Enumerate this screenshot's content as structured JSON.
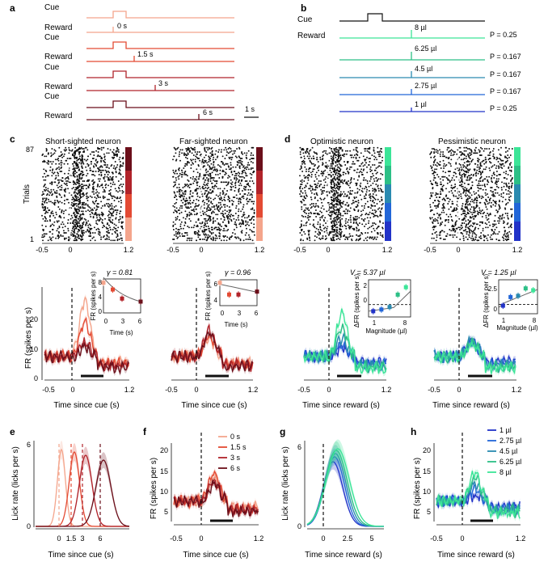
{
  "panel_letters": [
    "a",
    "b",
    "c",
    "d",
    "e",
    "f",
    "g",
    "h"
  ],
  "colors": {
    "red": [
      "#f4a58c",
      "#e34a33",
      "#b1232a",
      "#6b0f1a"
    ],
    "blue": [
      "#2233c8",
      "#2266d8",
      "#2a8ab0",
      "#2cbf86",
      "#3ce598"
    ]
  },
  "panel_a": {
    "cue_label": "Cue",
    "reward_label": "Reward",
    "delays": [
      "0 s",
      "1.5 s",
      "3 s",
      "6 s"
    ],
    "scale_label": "1 s"
  },
  "panel_b": {
    "cue_label": "Cue",
    "reward_label": "Reward",
    "magnitudes": [
      "8 µl",
      "6.25 µl",
      "4.5 µl",
      "2.75 µl",
      "1 µl"
    ],
    "probs": [
      "P = 0.25",
      "P = 0.167",
      "P = 0.167",
      "P = 0.167",
      "P = 0.25"
    ]
  },
  "panel_c": {
    "raster_titles": [
      "Short-sighted neuron",
      "Far-sighted neuron"
    ],
    "trials_label": "Trials",
    "trial_top": "87",
    "trial_bottom": "1",
    "xticks": [
      "-0.5",
      "0",
      "1.2"
    ],
    "ylabel": "FR (spikes per s)",
    "yticks": [
      "0",
      "10",
      "20"
    ],
    "xlabel": "Time since cue (s)",
    "inset1": {
      "title": "γ = 0.81",
      "ylabel": "FR (spikes per s)",
      "xlabel": "Time (s)",
      "yticks": [
        "0",
        "4",
        "8"
      ],
      "xticks": [
        "0",
        "3",
        "6"
      ]
    },
    "inset2": {
      "title": "γ = 0.96",
      "ylabel": "FR (spikes per s)",
      "xlabel": "Time (s)",
      "yticks": [
        "4",
        "6"
      ],
      "xticks": [
        "0",
        "3",
        "6"
      ]
    }
  },
  "panel_d": {
    "raster_titles": [
      "Optimistic neuron",
      "Pessimistic neuron"
    ],
    "xticks": [
      "-0.5",
      "0",
      "1.2"
    ],
    "xlabel": "Time since reward (s)",
    "inset1": {
      "title": "V = 5.37 µl",
      "ylabel": "ΔFR (spikes per s)",
      "xlabel": "Magnitude (µl)",
      "yticks": [
        "0",
        "2"
      ],
      "xticks": [
        "1",
        "8"
      ]
    },
    "inset2": {
      "title": "V = 1.25 µl",
      "ylabel": "ΔFR (spikes per s)",
      "xlabel": "Magnitude (µl)",
      "yticks": [
        "0",
        "2.5"
      ],
      "xticks": [
        "1",
        "8"
      ]
    }
  },
  "panel_e": {
    "ylabel": "Lick rate (licks per s)",
    "yticks": [
      "0",
      "6"
    ],
    "xticks": [
      "0",
      "1.5",
      "3",
      "6"
    ],
    "xlabel": "Time since cue (s)"
  },
  "panel_f": {
    "ylabel": "FR (spikes per s)",
    "yticks": [
      "5",
      "10",
      "15",
      "20"
    ],
    "xticks": [
      "-0.5",
      "0",
      "1.2"
    ],
    "xlabel": "Time since cue (s)",
    "legend": [
      "0 s",
      "1.5 s",
      "3 s",
      "6 s"
    ]
  },
  "panel_g": {
    "ylabel": "Lick rate (licks per s)",
    "yticks": [
      "0",
      "6"
    ],
    "xticks": [
      "0",
      "2.5",
      "5"
    ],
    "xlabel": "Time since reward (s)"
  },
  "panel_h": {
    "ylabel": "FR (spikes per s)",
    "yticks": [
      "5",
      "10",
      "15",
      "20"
    ],
    "xticks": [
      "-0.5",
      "0",
      "1.2"
    ],
    "xlabel": "Time since reward (s)",
    "legend": [
      "1 µl",
      "2.75 µl",
      "4.5 µl",
      "6.25 µl",
      "8 µl"
    ]
  },
  "chart_data": [
    {
      "type": "scatter",
      "panel": "c-inset-short",
      "title": "γ = 0.81",
      "xlabel": "Time (s)",
      "ylabel": "FR (spikes per s)",
      "x": [
        0,
        1.5,
        3,
        6
      ],
      "y": [
        8,
        6.2,
        3.8,
        3.0
      ],
      "xlim": [
        0,
        6
      ],
      "ylim": [
        0,
        9
      ]
    },
    {
      "type": "scatter",
      "panel": "c-inset-far",
      "title": "γ = 0.96",
      "xlabel": "Time (s)",
      "ylabel": "FR (spikes per s)",
      "x": [
        0,
        1.5,
        3,
        6
      ],
      "y": [
        6.6,
        5.0,
        5.0,
        5.4
      ],
      "xlim": [
        0,
        6
      ],
      "ylim": [
        3.5,
        7
      ]
    },
    {
      "type": "scatter",
      "panel": "d-inset-optimistic",
      "title": "V = 5.37 µl",
      "xlabel": "Magnitude (µl)",
      "ylabel": "ΔFR (spikes per s)",
      "x": [
        1,
        2.75,
        4.5,
        6.25,
        8
      ],
      "y": [
        -0.8,
        -0.6,
        -0.3,
        1.2,
        2.1
      ],
      "xlim": [
        0,
        9
      ],
      "ylim": [
        -1.5,
        3
      ]
    },
    {
      "type": "scatter",
      "panel": "d-inset-pessimistic",
      "title": "V = 1.25 µl",
      "xlabel": "Magnitude (µl)",
      "ylabel": "ΔFR (spikes per s)",
      "x": [
        1,
        2.75,
        4.5,
        6.25,
        8
      ],
      "y": [
        -0.2,
        1.2,
        1.4,
        2.6,
        2.3
      ],
      "xlim": [
        0,
        9
      ],
      "ylim": [
        -1.5,
        4
      ]
    }
  ]
}
